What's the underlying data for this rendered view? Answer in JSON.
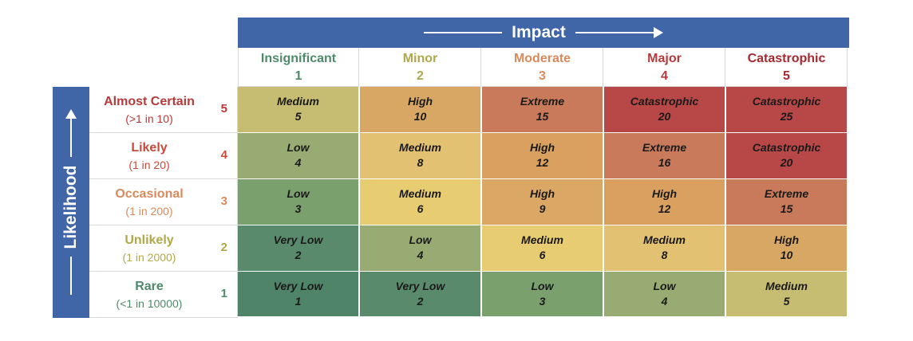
{
  "impact": {
    "title": "Impact"
  },
  "likelihood": {
    "title": "Likelihood"
  },
  "columns": [
    {
      "label": "Insignificant",
      "num": "1",
      "color": "#4e8a6a"
    },
    {
      "label": "Minor",
      "num": "2",
      "color": "#b0a94a"
    },
    {
      "label": "Moderate",
      "num": "3",
      "color": "#d98a5c"
    },
    {
      "label": "Major",
      "num": "4",
      "color": "#b8393a"
    },
    {
      "label": "Catastrophic",
      "num": "5",
      "color": "#a52a2f"
    }
  ],
  "rows": [
    {
      "label": "Almost Certain",
      "freq": "(>1 in 10)",
      "num": "5",
      "color": "#b8393a"
    },
    {
      "label": "Likely",
      "freq": "(1 in 20)",
      "num": "4",
      "color": "#c84a3a"
    },
    {
      "label": "Occasional",
      "freq": "(1 in 200)",
      "num": "3",
      "color": "#d98a5c"
    },
    {
      "label": "Unlikely",
      "freq": "(1 in 2000)",
      "num": "2",
      "color": "#b0a94a"
    },
    {
      "label": "Rare",
      "freq": "(<1 in 10000)",
      "num": "1",
      "color": "#4e8a6a"
    }
  ],
  "cells": [
    [
      {
        "rating": "Medium",
        "score": "5",
        "color": "#c7bd72"
      },
      {
        "rating": "High",
        "score": "10",
        "color": "#d9a764"
      },
      {
        "rating": "Extreme",
        "score": "15",
        "color": "#c87a5a"
      },
      {
        "rating": "Catastrophic",
        "score": "20",
        "color": "#b84747"
      },
      {
        "rating": "Catastrophic",
        "score": "25",
        "color": "#b84747"
      }
    ],
    [
      {
        "rating": "Low",
        "score": "4",
        "color": "#97ab72"
      },
      {
        "rating": "Medium",
        "score": "8",
        "color": "#e3c172"
      },
      {
        "rating": "High",
        "score": "12",
        "color": "#d9a060"
      },
      {
        "rating": "Extreme",
        "score": "16",
        "color": "#c87a5a"
      },
      {
        "rating": "Catastrophic",
        "score": "20",
        "color": "#b84747"
      }
    ],
    [
      {
        "rating": "Low",
        "score": "3",
        "color": "#7aa06e"
      },
      {
        "rating": "Medium",
        "score": "6",
        "color": "#e8cc72"
      },
      {
        "rating": "High",
        "score": "9",
        "color": "#dba764"
      },
      {
        "rating": "High",
        "score": "12",
        "color": "#d9a060"
      },
      {
        "rating": "Extreme",
        "score": "15",
        "color": "#c87a5a"
      }
    ],
    [
      {
        "rating": "Very Low",
        "score": "2",
        "color": "#5a8a6c"
      },
      {
        "rating": "Low",
        "score": "4",
        "color": "#97ab72"
      },
      {
        "rating": "Medium",
        "score": "6",
        "color": "#e8cc72"
      },
      {
        "rating": "Medium",
        "score": "8",
        "color": "#e3c172"
      },
      {
        "rating": "High",
        "score": "10",
        "color": "#d9a764"
      }
    ],
    [
      {
        "rating": "Very Low",
        "score": "1",
        "color": "#4f8468"
      },
      {
        "rating": "Very Low",
        "score": "2",
        "color": "#5a8a6c"
      },
      {
        "rating": "Low",
        "score": "3",
        "color": "#7aa06e"
      },
      {
        "rating": "Low",
        "score": "4",
        "color": "#97ab72"
      },
      {
        "rating": "Medium",
        "score": "5",
        "color": "#c7bd72"
      }
    ]
  ]
}
